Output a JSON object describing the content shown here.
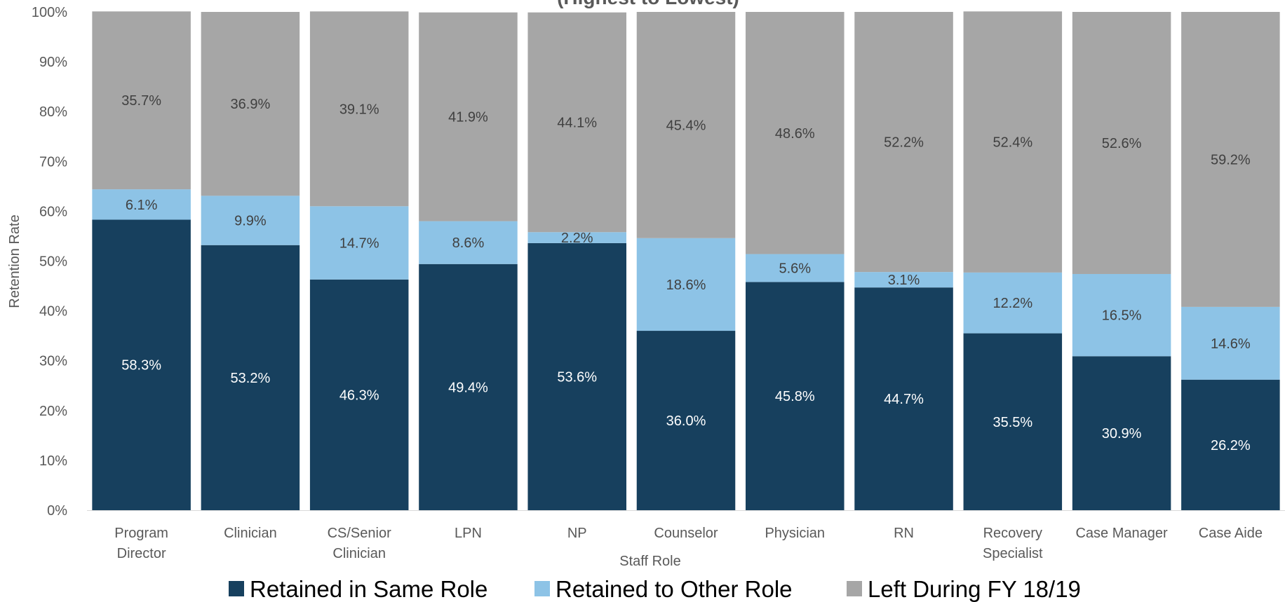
{
  "chart_data": {
    "type": "bar",
    "stacked": true,
    "title": "(Highest to Lowest)",
    "xlabel": "Staff Role",
    "ylabel": "Retention Rate",
    "ylim": [
      0,
      100
    ],
    "y_ticks": [
      "0%",
      "10%",
      "20%",
      "30%",
      "40%",
      "50%",
      "60%",
      "70%",
      "80%",
      "90%",
      "100%"
    ],
    "categories": [
      [
        "Program",
        "Director"
      ],
      [
        "Clinician"
      ],
      [
        "CS/Senior",
        "Clinician"
      ],
      [
        "LPN"
      ],
      [
        "NP"
      ],
      [
        "Counselor"
      ],
      [
        "Physician"
      ],
      [
        "RN"
      ],
      [
        "Recovery",
        "Specialist"
      ],
      [
        "Case Manager"
      ],
      [
        "Case Aide"
      ]
    ],
    "series": [
      {
        "name": "Retained in Same Role",
        "color": "#17405e",
        "label_color": "#ffffff",
        "values": [
          58.3,
          53.2,
          46.3,
          49.4,
          53.6,
          36.0,
          45.8,
          44.7,
          35.5,
          30.9,
          26.2
        ],
        "labels": [
          "58.3%",
          "53.2%",
          "46.3%",
          "49.4%",
          "53.6%",
          "36.0%",
          "45.8%",
          "44.7%",
          "35.5%",
          "30.9%",
          "26.2%"
        ]
      },
      {
        "name": "Retained to Other Role",
        "color": "#8dc3e6",
        "label_color": "#404040",
        "values": [
          6.1,
          9.9,
          14.7,
          8.6,
          2.2,
          18.6,
          5.6,
          3.1,
          12.2,
          16.5,
          14.6
        ],
        "labels": [
          "6.1%",
          "9.9%",
          "14.7%",
          "8.6%",
          "2.2%",
          "18.6%",
          "5.6%",
          "3.1%",
          "12.2%",
          "16.5%",
          "14.6%"
        ]
      },
      {
        "name": "Left During FY 18/19",
        "color": "#a6a6a6",
        "label_color": "#404040",
        "values": [
          35.7,
          36.9,
          39.1,
          41.9,
          44.1,
          45.4,
          48.6,
          52.2,
          52.4,
          52.6,
          59.2
        ],
        "labels": [
          "35.7%",
          "36.9%",
          "39.1%",
          "41.9%",
          "44.1%",
          "45.4%",
          "48.6%",
          "52.2%",
          "52.4%",
          "52.6%",
          "59.2%"
        ]
      }
    ],
    "legend_position": "bottom",
    "grid": false
  }
}
